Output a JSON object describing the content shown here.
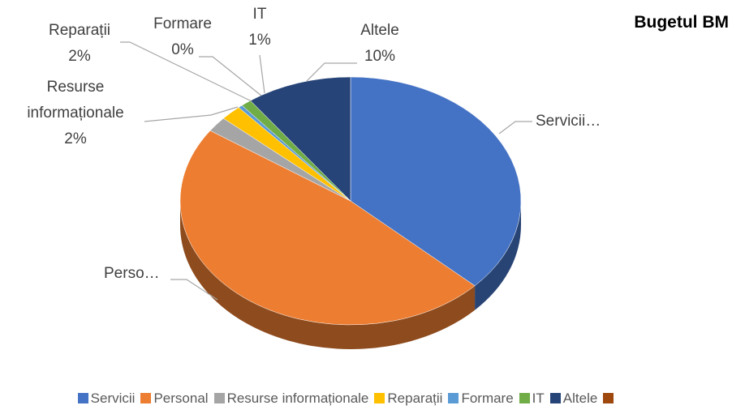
{
  "chart_data": {
    "type": "pie3d",
    "title": "Bugetul BM",
    "categories": [
      "Servicii",
      "Personal",
      "Resurse informaționale",
      "Reparații",
      "Formare",
      "IT",
      "Altele",
      null
    ],
    "values": [
      37,
      47.6,
      2,
      2,
      0.4,
      1,
      10,
      0
    ],
    "value_labels": [
      null,
      null,
      "2%",
      "2%",
      "0%",
      "1%",
      "10%",
      null
    ],
    "data_labels": [
      "Servicii…",
      "Perso…",
      "Resurse informaționale",
      "Reparații",
      "Formare",
      "IT",
      "Altele",
      null
    ],
    "colors": [
      "#4472c4",
      "#ed7d31",
      "#a5a5a5",
      "#ffc000",
      "#5b9bd5",
      "#70ad47",
      "#264478",
      "#9e480e"
    ],
    "legend": "bottom"
  }
}
